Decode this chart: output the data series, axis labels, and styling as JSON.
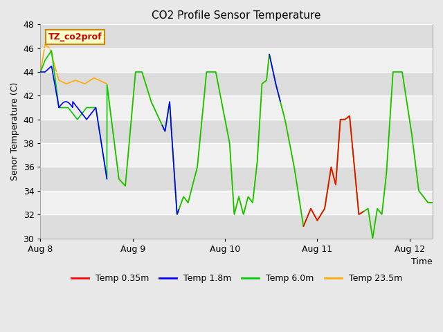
{
  "title": "CO2 Profile Sensor Temperature",
  "ylabel": "Senor Temperature (C)",
  "xlabel": "Time",
  "ylim": [
    30,
    48
  ],
  "yticks": [
    30,
    32,
    34,
    36,
    38,
    40,
    42,
    44,
    46,
    48
  ],
  "annotation_text": "TZ_co2prof",
  "annotation_color": "#cc0000",
  "annotation_bg": "#ffffcc",
  "annotation_border": "#cc8800",
  "colors": {
    "Temp 0.35m": "#ff0000",
    "Temp 1.8m": "#0000ff",
    "Temp 6.0m": "#00cc00",
    "Temp 23.5m": "#ffaa00"
  },
  "bg_color": "#e8e8e8",
  "plot_bg": "#f0f0f0",
  "grid_color": "#ffffff",
  "stripe_color": "#dcdcdc",
  "xtick_labels": [
    "Aug 8",
    "Aug 9",
    "Aug 10",
    "Aug 11",
    "Aug 12"
  ],
  "xtick_positions": [
    0.0,
    1.0,
    2.0,
    3.0,
    4.0
  ],
  "xlim": [
    0.0,
    4.25
  ]
}
